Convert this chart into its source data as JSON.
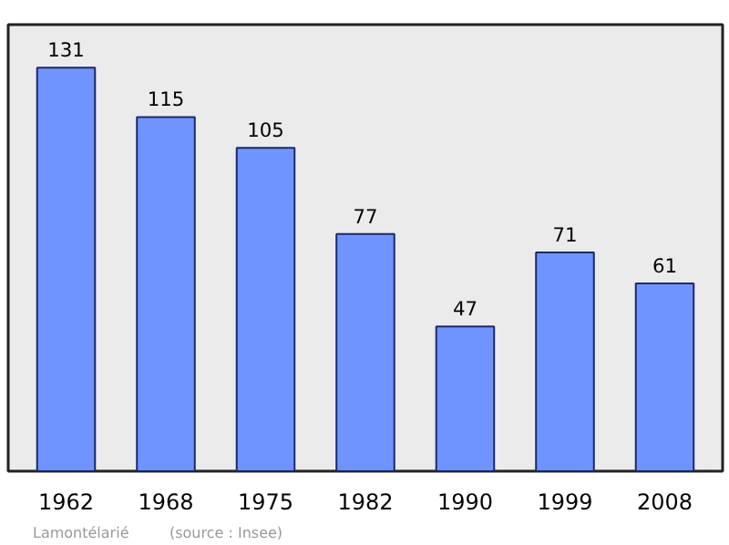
{
  "chart_data": {
    "type": "bar",
    "categories": [
      "1962",
      "1968",
      "1975",
      "1982",
      "1990",
      "1999",
      "2008"
    ],
    "values": [
      131,
      115,
      105,
      77,
      47,
      71,
      61
    ],
    "color": "#7094ff",
    "data_labels": true,
    "grid": false,
    "tick_labels": "x",
    "annotations": [
      "Lamontélarié",
      "(source : Insee)"
    ]
  }
}
